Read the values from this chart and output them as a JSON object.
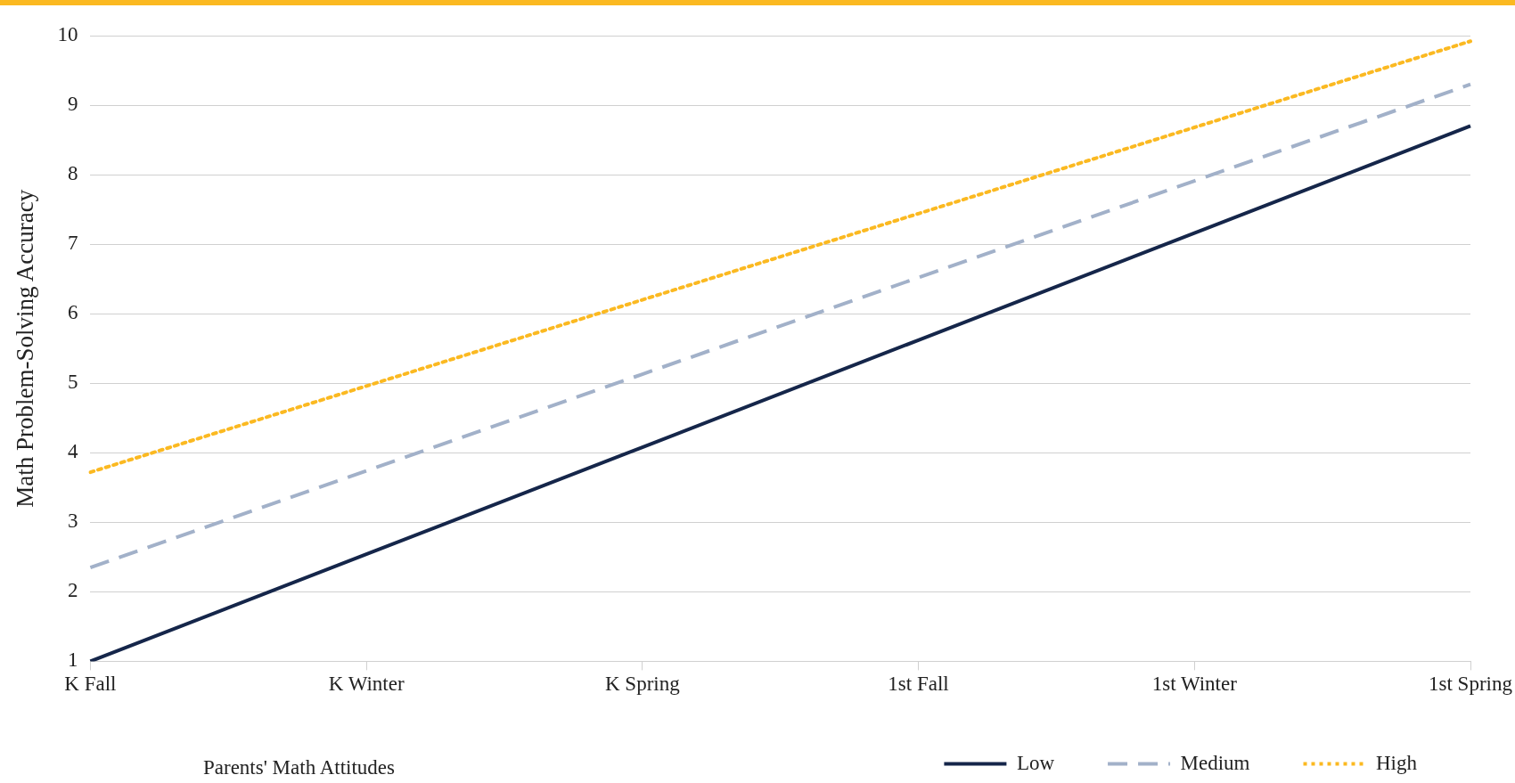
{
  "chart_data": {
    "type": "line",
    "categories": [
      "K Fall",
      "K Winter",
      "K Spring",
      "1st Fall",
      "1st Winter",
      "1st Spring"
    ],
    "ylabel": "Math Problem-Solving Accuracy",
    "legend_title": "Parents' Math Attitudes",
    "series": [
      {
        "name": "Low",
        "color": "#15264a",
        "values": [
          1,
          2.54,
          4.08,
          5.62,
          7.16,
          8.7
        ],
        "line_style": "solid"
      },
      {
        "name": "Medium",
        "color": "#a2b1c9",
        "values": [
          2.35,
          3.74,
          5.13,
          6.52,
          7.91,
          9.3
        ],
        "line_style": "dashed"
      },
      {
        "name": "High",
        "color": "#fbb921",
        "values": [
          3.72,
          4.96,
          6.2,
          7.44,
          8.68,
          9.92
        ],
        "line_style": "dotted"
      }
    ],
    "ylim": [
      1,
      10
    ],
    "yticks": [
      1,
      2,
      3,
      4,
      5,
      6,
      7,
      8,
      9,
      10
    ],
    "grid": "y",
    "legend": "bottom",
    "marker": "none"
  }
}
